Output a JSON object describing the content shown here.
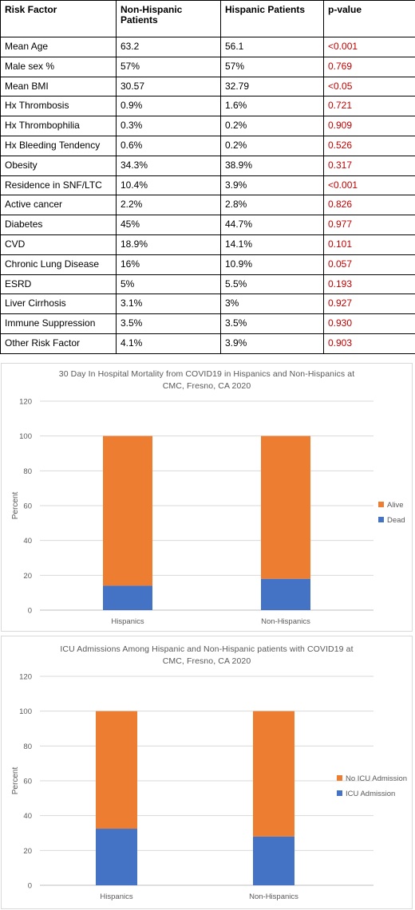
{
  "table": {
    "headers": [
      "Risk Factor",
      "Non-Hispanic Patients",
      "Hispanic Patients",
      "p-value"
    ],
    "rows": [
      [
        "Mean Age",
        "63.2",
        "56.1",
        "<0.001"
      ],
      [
        "Male sex %",
        "57%",
        "57%",
        "0.769"
      ],
      [
        "Mean BMI",
        "30.57",
        "32.79",
        "<0.05"
      ],
      [
        "Hx Thrombosis",
        "0.9%",
        "1.6%",
        "0.721"
      ],
      [
        "Hx Thrombophilia",
        "0.3%",
        "0.2%",
        "0.909"
      ],
      [
        "Hx Bleeding Tendency",
        "0.6%",
        "0.2%",
        "0.526"
      ],
      [
        "Obesity",
        "34.3%",
        "38.9%",
        "0.317"
      ],
      [
        "Residence in SNF/LTC",
        "10.4%",
        "3.9%",
        "<0.001"
      ],
      [
        "Active cancer",
        "2.2%",
        "2.8%",
        "0.826"
      ],
      [
        "Diabetes",
        "45%",
        "44.7%",
        "0.977"
      ],
      [
        "CVD",
        "18.9%",
        "14.1%",
        "0.101"
      ],
      [
        "Chronic Lung Disease",
        "16%",
        "10.9%",
        "0.057"
      ],
      [
        "ESRD",
        "5%",
        "5.5%",
        "0.193"
      ],
      [
        "Liver Cirrhosis",
        "3.1%",
        "3%",
        "0.927"
      ],
      [
        "Immune Suppression",
        "3.5%",
        "3.5%",
        "0.930"
      ],
      [
        "Other Risk Factor",
        "4.1%",
        "3.9%",
        "0.903"
      ]
    ],
    "pvalue_color": "#c00000"
  },
  "chart_data": [
    {
      "type": "bar",
      "stacked": true,
      "title_lines": [
        "30 Day In Hospital Mortality from COVID19 in Hispanics and Non-Hispanics at",
        "CMC, Fresno, CA 2020"
      ],
      "categories": [
        "Hispanics",
        "Non-Hispanics"
      ],
      "series": [
        {
          "name": "Dead",
          "values": [
            14,
            18
          ],
          "color": "#4472c4"
        },
        {
          "name": "Alive",
          "values": [
            86,
            82
          ],
          "color": "#ed7d31"
        }
      ],
      "ylabel": "Percent",
      "xlabel": "",
      "ylim": [
        0,
        120
      ],
      "yticks": [
        0,
        20,
        40,
        60,
        80,
        100,
        120
      ],
      "grid": true,
      "legend": "right"
    },
    {
      "type": "bar",
      "stacked": true,
      "title_lines": [
        "ICU Admissions Among Hispanic and Non-Hispanic patients with COVID19 at",
        "CMC, Fresno, CA 2020"
      ],
      "categories": [
        "Hispanics",
        "Non-Hispanics"
      ],
      "series": [
        {
          "name": "ICU Admission",
          "values": [
            32.5,
            28
          ],
          "color": "#4472c4"
        },
        {
          "name": "No ICU Admission",
          "values": [
            67.5,
            72
          ],
          "color": "#ed7d31"
        }
      ],
      "ylabel": "Percent",
      "xlabel": "",
      "ylim": [
        0,
        120
      ],
      "yticks": [
        0,
        20,
        40,
        60,
        80,
        100,
        120
      ],
      "grid": true,
      "legend": "right"
    }
  ]
}
